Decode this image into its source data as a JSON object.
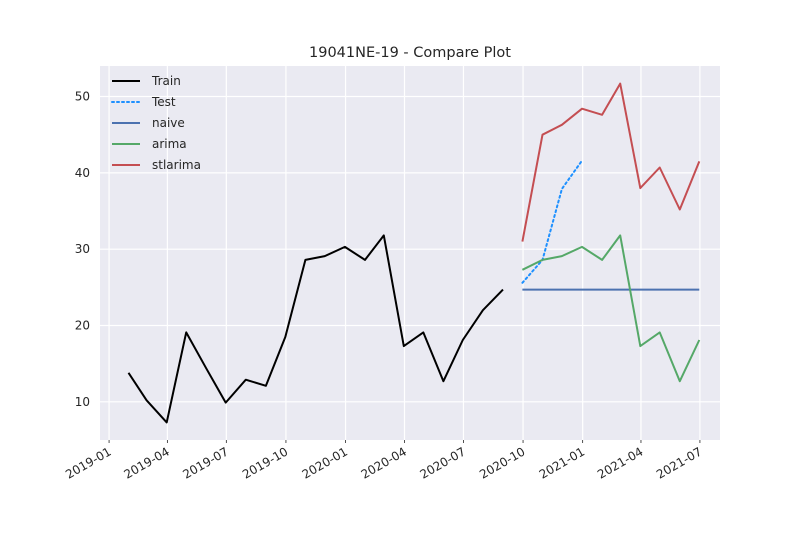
{
  "chart_data": {
    "type": "line",
    "title": "19041NE-19 - Compare Plot",
    "xlabel": "",
    "ylabel": "",
    "x_axis": {
      "type": "date",
      "range": [
        "2018-12-18",
        "2021-08-01"
      ],
      "tick_labels": [
        "2019-01",
        "2019-04",
        "2019-07",
        "2019-10",
        "2020-01",
        "2020-04",
        "2020-07",
        "2020-10",
        "2021-01",
        "2021-04",
        "2021-07"
      ],
      "tick_dates": [
        "2019-01-01",
        "2019-04-01",
        "2019-07-01",
        "2019-10-01",
        "2020-01-01",
        "2020-04-01",
        "2020-07-01",
        "2020-10-01",
        "2021-01-01",
        "2021-04-01",
        "2021-07-01"
      ]
    },
    "y_axis": {
      "range": [
        5,
        54
      ],
      "ticks": [
        10,
        20,
        30,
        40,
        50
      ],
      "tick_labels": [
        "10",
        "20",
        "30",
        "40",
        "50"
      ]
    },
    "grid": true,
    "legend_position": "top-left",
    "series": [
      {
        "name": "Train",
        "color": "#000000",
        "style": "solid",
        "x": [
          "2019-01-31",
          "2019-02-28",
          "2019-03-31",
          "2019-04-30",
          "2019-05-31",
          "2019-06-30",
          "2019-07-31",
          "2019-08-31",
          "2019-09-30",
          "2019-10-31",
          "2019-11-30",
          "2019-12-31",
          "2020-01-31",
          "2020-02-29",
          "2020-03-31",
          "2020-04-30",
          "2020-05-31",
          "2020-06-30",
          "2020-07-31",
          "2020-08-31"
        ],
        "y": [
          13.8,
          10.2,
          7.3,
          19.1,
          14.4,
          9.9,
          12.9,
          12.1,
          18.5,
          28.6,
          29.1,
          30.3,
          28.6,
          31.8,
          17.3,
          19.1,
          12.7,
          18.1,
          22.0,
          24.7
        ]
      },
      {
        "name": "Test",
        "color": "#1e90ff",
        "style": "dotted",
        "x": [
          "2020-09-30",
          "2020-10-31",
          "2020-11-30",
          "2020-12-31"
        ],
        "y": [
          25.6,
          28.6,
          37.9,
          41.6
        ]
      },
      {
        "name": "naive",
        "color": "#4c72b0",
        "style": "solid",
        "x": [
          "2020-09-30",
          "2020-10-31",
          "2020-11-30",
          "2020-12-31",
          "2021-01-31",
          "2021-02-28",
          "2021-03-31",
          "2021-04-30",
          "2021-05-31",
          "2021-06-30"
        ],
        "y": [
          24.7,
          24.7,
          24.7,
          24.7,
          24.7,
          24.7,
          24.7,
          24.7,
          24.7,
          24.7
        ]
      },
      {
        "name": "arima",
        "color": "#55a868",
        "style": "solid",
        "x": [
          "2020-09-30",
          "2020-10-31",
          "2020-11-30",
          "2020-12-31",
          "2021-01-31",
          "2021-02-28",
          "2021-03-31",
          "2021-04-30",
          "2021-05-31",
          "2021-06-30"
        ],
        "y": [
          27.3,
          28.6,
          29.1,
          30.3,
          28.6,
          31.8,
          17.3,
          19.1,
          12.7,
          18.1
        ]
      },
      {
        "name": "stlarima",
        "color": "#c44e52",
        "style": "solid",
        "x": [
          "2020-09-30",
          "2020-10-31",
          "2020-11-30",
          "2020-12-31",
          "2021-01-31",
          "2021-02-28",
          "2021-03-31",
          "2021-04-30",
          "2021-05-31",
          "2021-06-30"
        ],
        "y": [
          31.0,
          45.0,
          46.3,
          48.4,
          47.6,
          51.7,
          38.0,
          40.7,
          35.2,
          41.5
        ]
      }
    ]
  }
}
